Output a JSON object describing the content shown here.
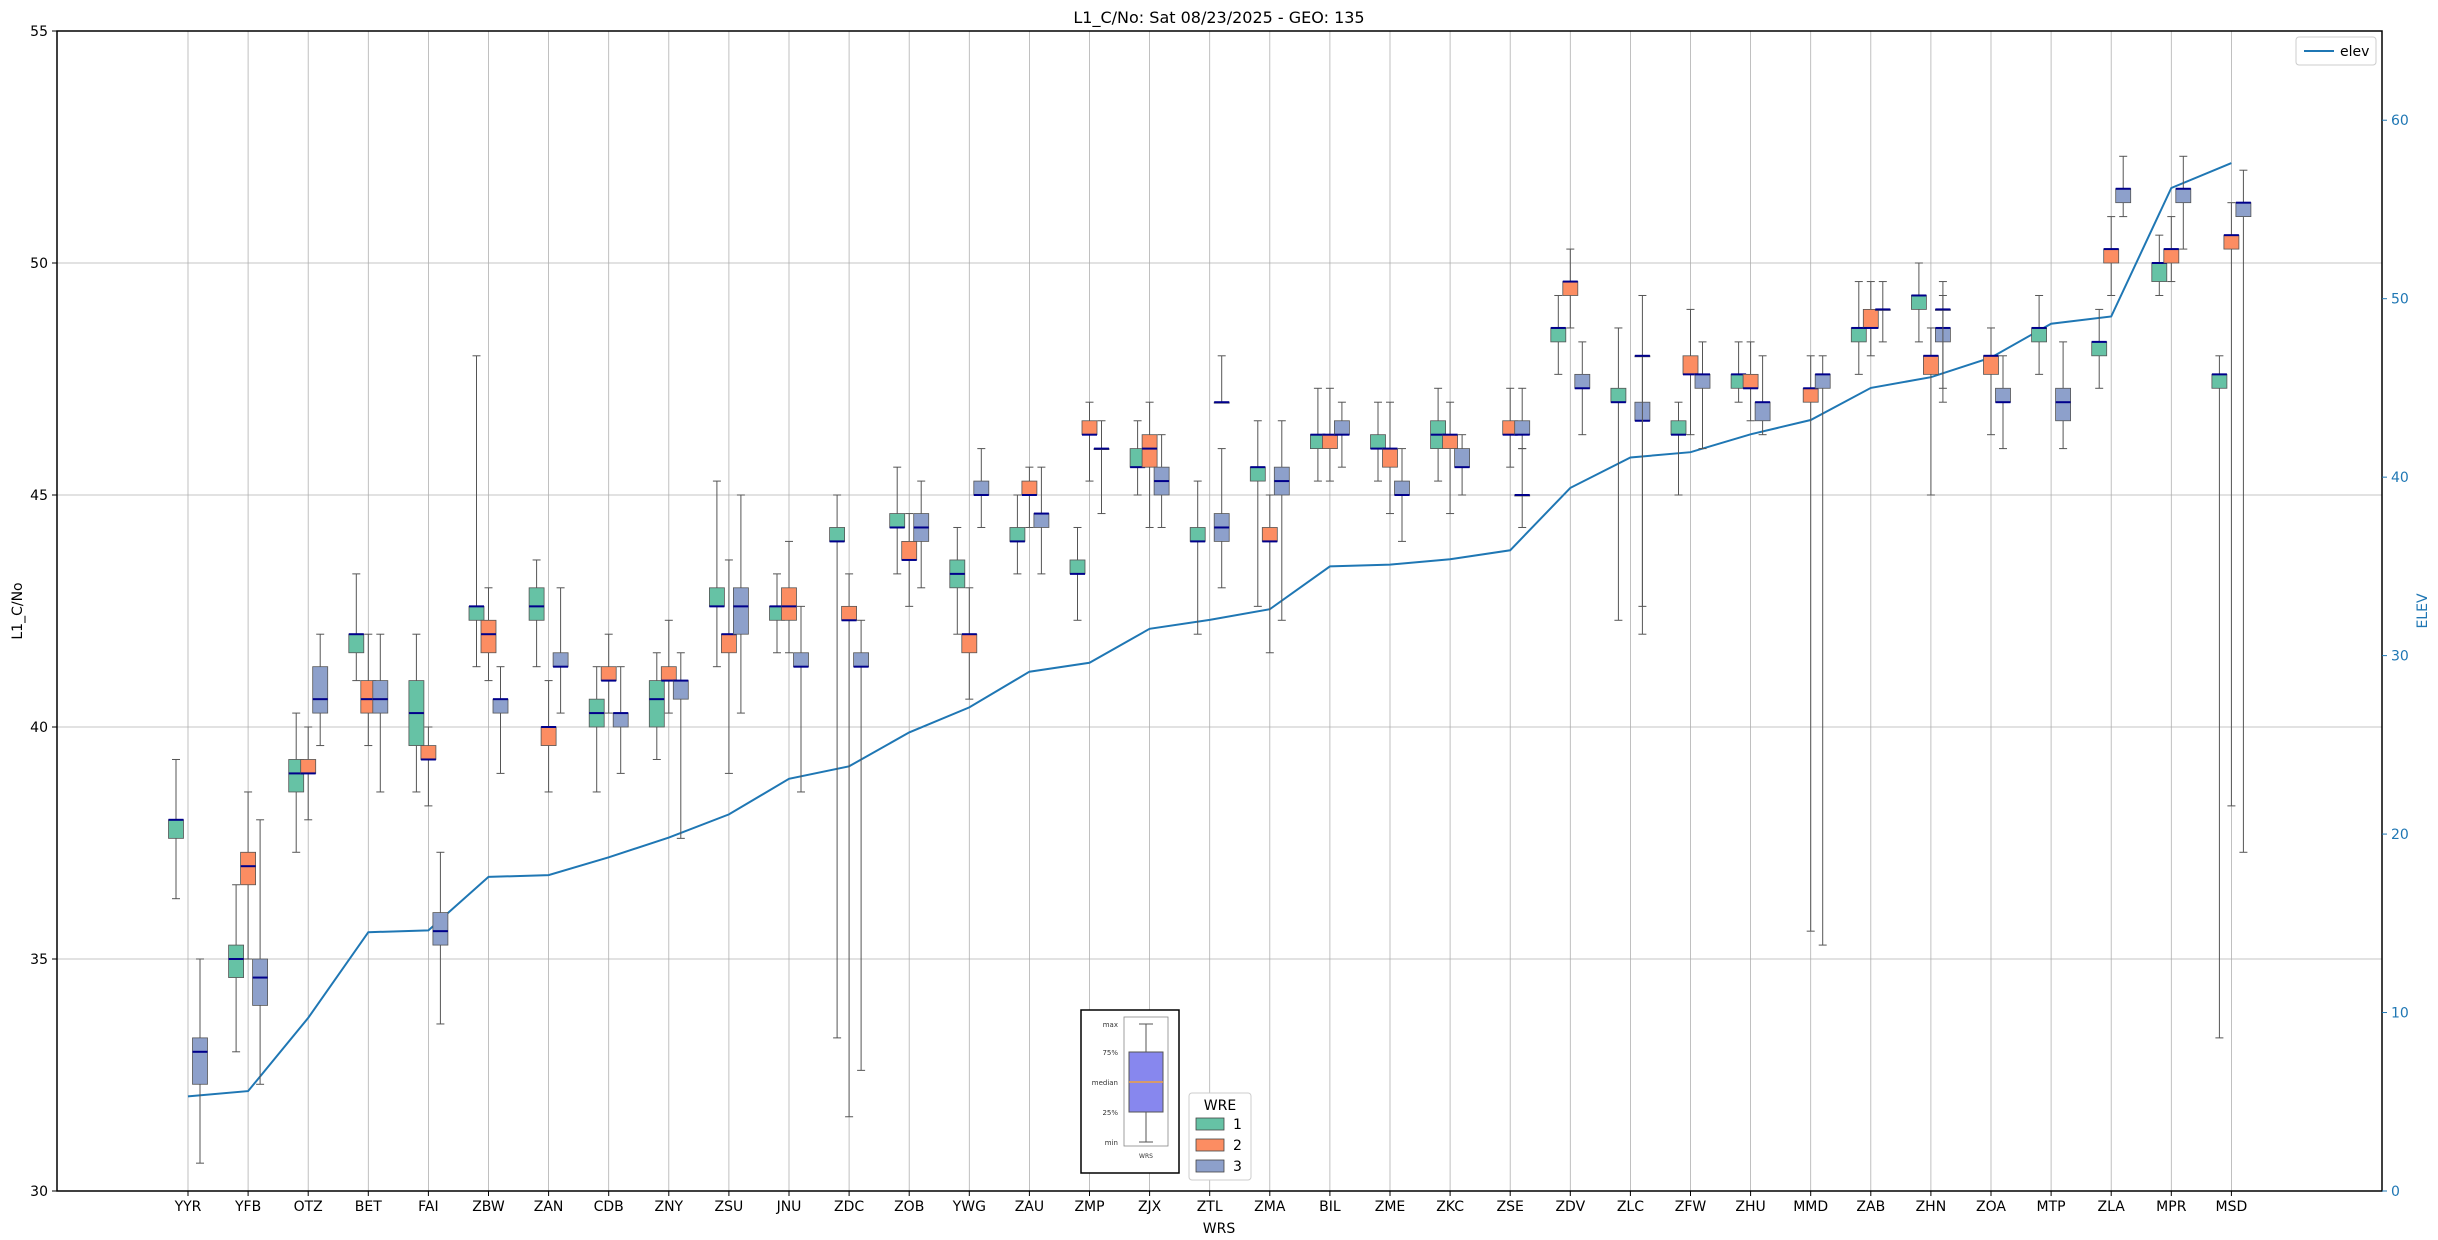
{
  "chart_data": {
    "type": "boxplot",
    "title": "L1_C/No: Sat 08/23/2025 - GEO: 135",
    "xlabel": "WRS",
    "ylabel": "L1_C/No",
    "y2label": "ELEV",
    "ylim": [
      30,
      55
    ],
    "y_ticks": [
      "30",
      "35",
      "40",
      "45",
      "50",
      "55"
    ],
    "y2lim": [
      0,
      65
    ],
    "y2_ticks": [
      "0",
      "10",
      "20",
      "30",
      "40",
      "50",
      "60"
    ],
    "grid": true,
    "colors": {
      "wre1": "#66c2a5",
      "wre2": "#fc8d62",
      "wre3": "#8da0cb",
      "elev": "#1f77b4",
      "median": "#00008b",
      "whisker": "#555555",
      "anomaly": "#d62728"
    },
    "legend_elev": {
      "label": "elev",
      "position": "top-right"
    },
    "legend_wre": {
      "title": "WRE",
      "entries": [
        "1",
        "2",
        "3"
      ],
      "position": "bottom-center"
    },
    "key_box": {
      "labels": [
        "max",
        "75%",
        "median",
        "25%",
        "min"
      ],
      "xlabel": "WRS"
    },
    "categories": [
      "YYR",
      "YFB",
      "OTZ",
      "BET",
      "FAI",
      "ZBW",
      "ZAN",
      "CDB",
      "ZNY",
      "ZSU",
      "JNU",
      "ZDC",
      "ZOB",
      "YWG",
      "ZAU",
      "ZMP",
      "ZJX",
      "ZTL",
      "ZMA",
      "BIL",
      "ZME",
      "ZKC",
      "ZSE",
      "ZDV",
      "ZLC",
      "ZFW",
      "ZHU",
      "MMD",
      "ZAB",
      "ZHN",
      "ZOA",
      "MTP",
      "ZLA",
      "MPR",
      "MSD"
    ],
    "elev": [
      5.3,
      5.6,
      9.7,
      14.5,
      14.6,
      17.6,
      17.7,
      18.7,
      19.8,
      21.1,
      23.1,
      23.8,
      25.7,
      27.1,
      29.1,
      29.6,
      31.5,
      32.0,
      32.6,
      35.0,
      35.1,
      35.4,
      35.9,
      39.4,
      41.1,
      41.4,
      42.4,
      43.2,
      45.0,
      45.6,
      46.7,
      48.6,
      49.0,
      56.2,
      57.6
    ],
    "series": [
      {
        "name": "1",
        "boxes": [
          {
            "cat": "YYR",
            "min": 36.3,
            "q1": 37.6,
            "med": 38.0,
            "q3": 38.0,
            "max": 39.3
          },
          {
            "cat": "YFB",
            "min": 33.0,
            "q1": 34.6,
            "med": 35.0,
            "q3": 35.3,
            "max": 36.6
          },
          {
            "cat": "OTZ",
            "min": 37.3,
            "q1": 38.6,
            "med": 39.0,
            "q3": 39.3,
            "max": 40.3
          },
          {
            "cat": "BET",
            "min": 41.0,
            "q1": 41.6,
            "med": 42.0,
            "q3": 42.0,
            "max": 43.3
          },
          {
            "cat": "FAI",
            "min": 38.6,
            "q1": 39.6,
            "med": 40.3,
            "q3": 41.0,
            "max": 42.0
          },
          {
            "cat": "ZBW",
            "min": 41.3,
            "q1": 42.3,
            "med": 42.6,
            "q3": 42.6,
            "max": 48.0
          },
          {
            "cat": "ZAN",
            "min": 41.3,
            "q1": 42.3,
            "med": 42.6,
            "q3": 43.0,
            "max": 43.6
          },
          {
            "cat": "CDB",
            "min": 38.6,
            "q1": 40.0,
            "med": 40.3,
            "q3": 40.6,
            "max": 41.3
          },
          {
            "cat": "ZNY",
            "min": 39.3,
            "q1": 40.0,
            "med": 40.6,
            "q3": 41.0,
            "max": 41.6
          },
          {
            "cat": "ZSU",
            "min": 41.3,
            "q1": 42.6,
            "med": 42.6,
            "q3": 43.0,
            "max": 45.3
          },
          {
            "cat": "JNU",
            "min": 41.6,
            "q1": 42.3,
            "med": 42.6,
            "q3": 42.6,
            "max": 43.3
          },
          {
            "cat": "ZDC",
            "min": 33.3,
            "q1": 44.0,
            "med": 44.0,
            "q3": 44.3,
            "max": 45.0
          },
          {
            "cat": "ZOB",
            "min": 43.3,
            "q1": 44.3,
            "med": 44.3,
            "q3": 44.6,
            "max": 45.6
          },
          {
            "cat": "YWG",
            "min": 42.0,
            "q1": 43.0,
            "med": 43.3,
            "q3": 43.6,
            "max": 44.3
          },
          {
            "cat": "ZAU",
            "min": 43.3,
            "q1": 44.0,
            "med": 44.0,
            "q3": 44.3,
            "max": 45.0
          },
          {
            "cat": "ZMP",
            "min": 42.3,
            "q1": 43.3,
            "med": 43.3,
            "q3": 43.6,
            "max": 44.3
          },
          {
            "cat": "ZJX",
            "min": 45.0,
            "q1": 45.6,
            "med": 45.6,
            "q3": 46.0,
            "max": 46.6
          },
          {
            "cat": "ZTL",
            "min": 42.0,
            "q1": 44.0,
            "med": 44.0,
            "q3": 44.3,
            "max": 45.3
          },
          {
            "cat": "ZMA",
            "min": 42.6,
            "q1": 45.3,
            "med": 45.6,
            "q3": 45.6,
            "max": 46.6
          },
          {
            "cat": "BIL",
            "min": 45.3,
            "q1": 46.0,
            "med": 46.3,
            "q3": 46.3,
            "max": 47.3
          },
          {
            "cat": "ZME",
            "min": 45.3,
            "q1": 46.0,
            "med": 46.0,
            "q3": 46.3,
            "max": 47.0
          },
          {
            "cat": "ZKC",
            "min": 45.3,
            "q1": 46.0,
            "med": 46.3,
            "q3": 46.6,
            "max": 47.3
          },
          {
            "cat": "ZDV",
            "min": 47.6,
            "q1": 48.3,
            "med": 48.6,
            "q3": 48.6,
            "max": 49.3
          },
          {
            "cat": "ZLC",
            "min": 42.3,
            "q1": 47.0,
            "med": 47.0,
            "q3": 47.3,
            "max": 48.6
          },
          {
            "cat": "ZFW",
            "min": 45.0,
            "q1": 46.3,
            "med": 46.3,
            "q3": 46.6,
            "max": 47.0
          },
          {
            "cat": "ZHU",
            "min": 47.0,
            "q1": 47.3,
            "med": 47.6,
            "q3": 47.6,
            "max": 48.3
          },
          {
            "cat": "ZAB",
            "min": 47.6,
            "q1": 48.3,
            "med": 48.6,
            "q3": 48.6,
            "max": 49.6
          },
          {
            "cat": "ZHN",
            "min": 48.3,
            "q1": 49.0,
            "med": 49.3,
            "q3": 49.3,
            "max": 50.0
          },
          {
            "cat": "MTP",
            "min": 47.6,
            "q1": 48.3,
            "med": 48.6,
            "q3": 48.6,
            "max": 49.3
          },
          {
            "cat": "ZLA",
            "min": 47.3,
            "q1": 48.0,
            "med": 48.3,
            "q3": 48.3,
            "max": 49.0
          },
          {
            "cat": "MPR",
            "min": 49.3,
            "q1": 49.6,
            "med": 50.0,
            "q3": 50.0,
            "max": 50.6
          },
          {
            "cat": "MSD",
            "min": 33.3,
            "q1": 47.3,
            "med": 47.6,
            "q3": 47.6,
            "max": 48.0
          }
        ]
      },
      {
        "name": "2",
        "boxes": [
          {
            "cat": "YFB",
            "min": 35.0,
            "q1": 36.6,
            "med": 37.0,
            "q3": 37.3,
            "max": 38.6
          },
          {
            "cat": "OTZ",
            "min": 38.0,
            "q1": 39.0,
            "med": 39.0,
            "q3": 39.3,
            "max": 40.0
          },
          {
            "cat": "BET",
            "min": 39.6,
            "q1": 40.3,
            "med": 40.6,
            "q3": 41.0,
            "max": 42.0
          },
          {
            "cat": "FAI",
            "min": 38.3,
            "q1": 39.3,
            "med": 39.3,
            "q3": 39.6,
            "max": 40.0
          },
          {
            "cat": "ZBW",
            "min": 41.0,
            "q1": 41.6,
            "med": 42.0,
            "q3": 42.3,
            "max": 43.0
          },
          {
            "cat": "ZAN",
            "min": 38.6,
            "q1": 39.6,
            "med": 40.0,
            "q3": 40.0,
            "max": 41.0
          },
          {
            "cat": "CDB",
            "min": 40.3,
            "q1": 41.0,
            "med": 41.0,
            "q3": 41.3,
            "max": 42.0
          },
          {
            "cat": "ZNY",
            "min": 40.3,
            "q1": 41.0,
            "med": 41.0,
            "q3": 41.3,
            "max": 42.3
          },
          {
            "cat": "ZSU",
            "min": 39.0,
            "q1": 41.6,
            "med": 42.0,
            "q3": 42.0,
            "max": 43.6
          },
          {
            "cat": "JNU",
            "min": 41.6,
            "q1": 42.3,
            "med": 42.6,
            "q3": 43.0,
            "max": 44.0
          },
          {
            "cat": "ZDC",
            "min": 31.6,
            "q1": 42.3,
            "med": 42.3,
            "q3": 42.6,
            "max": 43.3
          },
          {
            "cat": "ZOB",
            "min": 42.6,
            "q1": 43.6,
            "med": 43.6,
            "q3": 44.0,
            "max": 44.6
          },
          {
            "cat": "YWG",
            "min": 40.6,
            "q1": 41.6,
            "med": 42.0,
            "q3": 42.0,
            "max": 43.0
          },
          {
            "cat": "ZAU",
            "min": 44.3,
            "q1": 45.0,
            "med": 45.0,
            "q3": 45.3,
            "max": 45.6
          },
          {
            "cat": "ZMP",
            "min": 45.3,
            "q1": 46.3,
            "med": 46.3,
            "q3": 46.6,
            "max": 47.0
          },
          {
            "cat": "ZJX",
            "min": 44.3,
            "q1": 45.6,
            "med": 46.0,
            "q3": 46.3,
            "max": 47.0
          },
          {
            "cat": "ZMA",
            "min": 41.6,
            "q1": 44.0,
            "med": 44.0,
            "q3": 44.3,
            "max": 45.0
          },
          {
            "cat": "BIL",
            "min": 45.3,
            "q1": 46.0,
            "med": 46.3,
            "q3": 46.3,
            "max": 47.3
          },
          {
            "cat": "ZME",
            "min": 44.6,
            "q1": 45.6,
            "med": 46.0,
            "q3": 46.0,
            "max": 47.0
          },
          {
            "cat": "ZKC",
            "min": 44.6,
            "q1": 46.0,
            "med": 46.3,
            "q3": 46.3,
            "max": 47.0
          },
          {
            "cat": "ZSE",
            "min": 45.6,
            "q1": 46.3,
            "med": 46.3,
            "q3": 46.6,
            "max": 47.3
          },
          {
            "cat": "ZDV",
            "min": 48.6,
            "q1": 49.3,
            "med": 49.6,
            "q3": 49.6,
            "max": 50.3
          },
          {
            "cat": "ZFW",
            "min": 46.3,
            "q1": 47.6,
            "med": 47.6,
            "q3": 48.0,
            "max": 49.0
          },
          {
            "cat": "ZHU",
            "min": 46.6,
            "q1": 47.3,
            "med": 47.3,
            "q3": 47.6,
            "max": 48.3
          },
          {
            "cat": "MMD",
            "min": 35.6,
            "q1": 47.0,
            "med": 47.3,
            "q3": 47.3,
            "max": 48.0
          },
          {
            "cat": "ZAB",
            "min": 48.0,
            "q1": 48.6,
            "med": 48.6,
            "q3": 49.0,
            "max": 49.6
          },
          {
            "cat": "ZHN",
            "min": 45.0,
            "q1": 47.6,
            "med": 48.0,
            "q3": 48.0,
            "max": 48.6
          },
          {
            "cat": "ZOA",
            "min": 46.3,
            "q1": 47.6,
            "med": 48.0,
            "q3": 48.0,
            "max": 48.6
          },
          {
            "cat": "ZLA",
            "min": 49.3,
            "q1": 50.0,
            "med": 50.3,
            "q3": 50.3,
            "max": 51.0
          },
          {
            "cat": "MPR",
            "min": 49.6,
            "q1": 50.0,
            "med": 50.3,
            "q3": 50.3,
            "max": 51.0
          },
          {
            "cat": "MSD",
            "min": 38.3,
            "q1": 50.3,
            "med": 50.6,
            "q3": 50.6,
            "max": 51.3
          }
        ]
      },
      {
        "name": "3",
        "boxes": [
          {
            "cat": "YYR",
            "min": 30.6,
            "q1": 32.3,
            "med": 33.0,
            "q3": 33.3,
            "max": 35.0
          },
          {
            "cat": "YFB",
            "min": 32.3,
            "q1": 34.0,
            "med": 34.6,
            "q3": 35.0,
            "max": 38.0
          },
          {
            "cat": "OTZ",
            "min": 39.6,
            "q1": 40.3,
            "med": 40.6,
            "q3": 41.3,
            "max": 42.0
          },
          {
            "cat": "BET",
            "min": 38.6,
            "q1": 40.3,
            "med": 40.6,
            "q3": 41.0,
            "max": 42.0
          },
          {
            "cat": "FAI",
            "min": 33.6,
            "q1": 35.3,
            "med": 35.6,
            "q3": 36.0,
            "max": 37.3
          },
          {
            "cat": "ZBW",
            "min": 39.0,
            "q1": 40.3,
            "med": 40.6,
            "q3": 40.6,
            "max": 41.3
          },
          {
            "cat": "ZAN",
            "min": 40.3,
            "q1": 41.3,
            "med": 41.3,
            "q3": 41.6,
            "max": 43.0
          },
          {
            "cat": "CDB",
            "min": 39.0,
            "q1": 40.0,
            "med": 40.3,
            "q3": 40.3,
            "max": 41.3
          },
          {
            "cat": "ZNY",
            "min": 37.6,
            "q1": 40.6,
            "med": 41.0,
            "q3": 41.0,
            "max": 41.6
          },
          {
            "cat": "ZSU",
            "min": 40.3,
            "q1": 42.0,
            "med": 42.6,
            "q3": 43.0,
            "max": 45.0
          },
          {
            "cat": "JNU",
            "min": 38.6,
            "q1": 41.3,
            "med": 41.3,
            "q3": 41.6,
            "max": 42.6
          },
          {
            "cat": "ZDC",
            "min": 32.6,
            "q1": 41.3,
            "med": 41.3,
            "q3": 41.6,
            "max": 42.3
          },
          {
            "cat": "ZOB",
            "min": 43.0,
            "q1": 44.0,
            "med": 44.3,
            "q3": 44.6,
            "max": 45.3
          },
          {
            "cat": "YWG",
            "min": 44.3,
            "q1": 45.0,
            "med": 45.0,
            "q3": 45.3,
            "max": 46.0
          },
          {
            "cat": "ZAU",
            "min": 43.3,
            "q1": 44.3,
            "med": 44.6,
            "q3": 44.6,
            "max": 45.6
          },
          {
            "cat": "ZMP",
            "min": 44.6,
            "q1": 46.0,
            "med": 46.0,
            "q3": 46.0,
            "max": 46.6
          },
          {
            "cat": "ZJX",
            "min": 44.3,
            "q1": 45.0,
            "med": 45.3,
            "q3": 45.6,
            "max": 46.3
          },
          {
            "cat": "ZTL",
            "min": 43.0,
            "q1": 44.0,
            "med": 44.3,
            "q3": 44.6,
            "max": 46.0
          },
          {
            "cat": "ZTL",
            "min": 47.0,
            "q1": 47.0,
            "med": 47.0,
            "q3": 47.0,
            "max": 48.0
          },
          {
            "cat": "ZMA",
            "min": 42.3,
            "q1": 45.0,
            "med": 45.3,
            "q3": 45.6,
            "max": 46.6
          },
          {
            "cat": "BIL",
            "min": 45.6,
            "q1": 46.3,
            "med": 46.3,
            "q3": 46.6,
            "max": 47.0
          },
          {
            "cat": "ZME",
            "min": 44.0,
            "q1": 45.0,
            "med": 45.0,
            "q3": 45.3,
            "max": 46.0
          },
          {
            "cat": "ZKC",
            "min": 45.0,
            "q1": 45.6,
            "med": 45.6,
            "q3": 46.0,
            "max": 46.3
          },
          {
            "cat": "ZSE",
            "min": 44.3,
            "q1": 45.0,
            "med": 45.0,
            "q3": 45.0,
            "max": 46.0
          },
          {
            "cat": "ZSE",
            "min": 46.0,
            "q1": 46.3,
            "med": 46.3,
            "q3": 46.6,
            "max": 47.3
          },
          {
            "cat": "ZDV",
            "min": 46.3,
            "q1": 47.3,
            "med": 47.3,
            "q3": 47.6,
            "max": 48.3
          },
          {
            "cat": "ZLC",
            "min": 42.0,
            "q1": 46.6,
            "med": 46.6,
            "q3": 47.0,
            "max": 48.0
          },
          {
            "cat": "ZLC",
            "min": 42.6,
            "q1": 48.0,
            "med": 48.0,
            "q3": 48.0,
            "max": 49.3
          },
          {
            "cat": "ZFW",
            "min": 46.0,
            "q1": 47.3,
            "med": 47.6,
            "q3": 47.6,
            "max": 48.3
          },
          {
            "cat": "ZHU",
            "min": 46.3,
            "q1": 46.6,
            "med": 47.0,
            "q3": 47.0,
            "max": 48.0
          },
          {
            "cat": "MMD",
            "min": 35.3,
            "q1": 47.3,
            "med": 47.6,
            "q3": 47.6,
            "max": 48.0
          },
          {
            "cat": "ZAB",
            "min": 48.3,
            "q1": 49.0,
            "med": 49.0,
            "q3": 49.0,
            "max": 49.6
          },
          {
            "cat": "ZHN",
            "min": 47.0,
            "q1": 48.3,
            "med": 48.6,
            "q3": 48.6,
            "max": 49.3
          },
          {
            "cat": "ZHN",
            "min": 47.3,
            "q1": 49.0,
            "med": 49.0,
            "q3": 49.0,
            "max": 49.6
          },
          {
            "cat": "ZOA",
            "min": 46.0,
            "q1": 47.0,
            "med": 47.0,
            "q3": 47.3,
            "max": 48.0
          },
          {
            "cat": "MTP",
            "min": 46.0,
            "q1": 46.6,
            "med": 47.0,
            "q3": 47.3,
            "max": 48.3
          },
          {
            "cat": "ZLA",
            "min": 51.0,
            "q1": 51.3,
            "med": 51.6,
            "q3": 51.6,
            "max": 52.3
          },
          {
            "cat": "MPR",
            "min": 50.3,
            "q1": 51.3,
            "med": 51.6,
            "q3": 51.6,
            "max": 52.3
          },
          {
            "cat": "MSD",
            "min": 37.3,
            "q1": 51.0,
            "med": 51.3,
            "q3": 51.3,
            "max": 52.0
          }
        ]
      }
    ]
  }
}
